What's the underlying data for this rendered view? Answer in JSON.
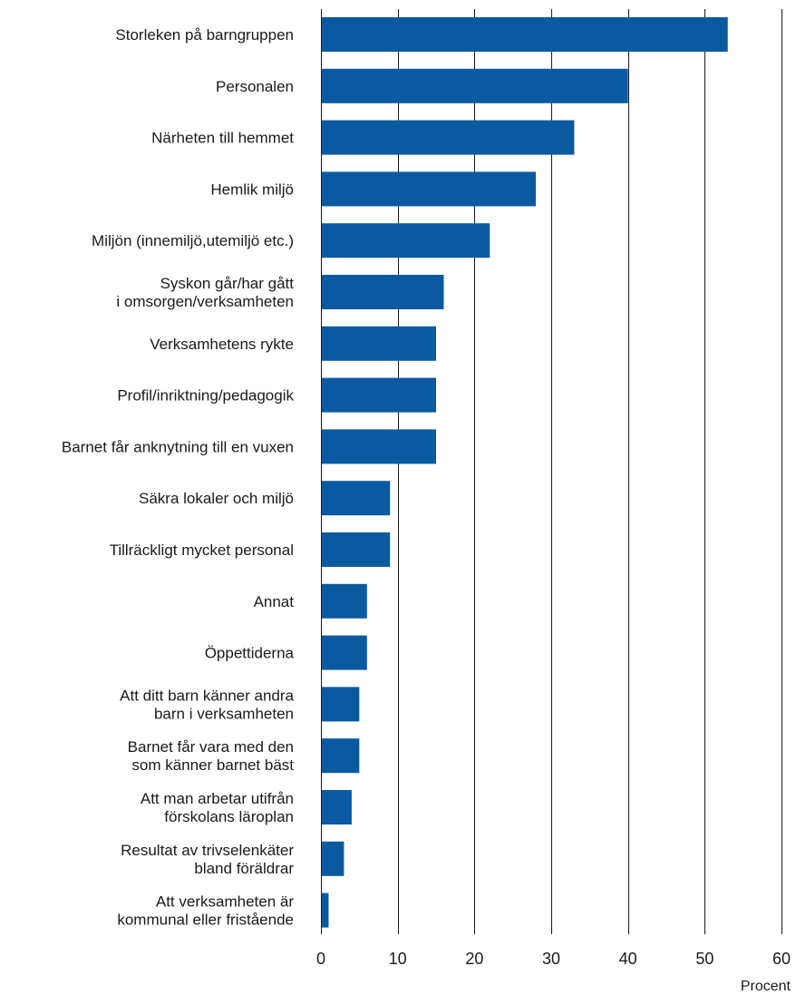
{
  "chart_data": {
    "type": "bar",
    "orientation": "horizontal",
    "categories": [
      [
        "Storleken på barngruppen"
      ],
      [
        "Personalen"
      ],
      [
        "Närheten till hemmet"
      ],
      [
        "Hemlik miljö"
      ],
      [
        "Miljön (innemiljö,utemiljö etc.)"
      ],
      [
        "Syskon går/har gått",
        "i omsorgen/verksamheten"
      ],
      [
        "Verksamhetens rykte"
      ],
      [
        "Profil/inriktning/pedagogik"
      ],
      [
        "Barnet får anknytning till en vuxen"
      ],
      [
        "Säkra lokaler och miljö"
      ],
      [
        "Tillräckligt mycket personal"
      ],
      [
        "Annat"
      ],
      [
        "Öppettiderna"
      ],
      [
        "Att ditt barn känner andra",
        "barn i verksamheten"
      ],
      [
        "Barnet får vara med den",
        "som känner barnet bäst"
      ],
      [
        "Att man arbetar utifrån",
        "förskolans läroplan"
      ],
      [
        "Resultat av trivselenkäter",
        "bland föräldrar"
      ],
      [
        "Att verksamheten är",
        "kommunal eller fristående"
      ]
    ],
    "values": [
      53,
      40,
      33,
      28,
      22,
      16,
      15,
      15,
      15,
      9,
      9,
      6,
      6,
      5,
      5,
      4,
      3,
      1
    ],
    "xlim": [
      0,
      60
    ],
    "xticks": [
      0,
      10,
      20,
      30,
      40,
      50,
      60
    ],
    "xlabel": "Procent",
    "grid": true,
    "bar_color": "#0b5aa1"
  }
}
